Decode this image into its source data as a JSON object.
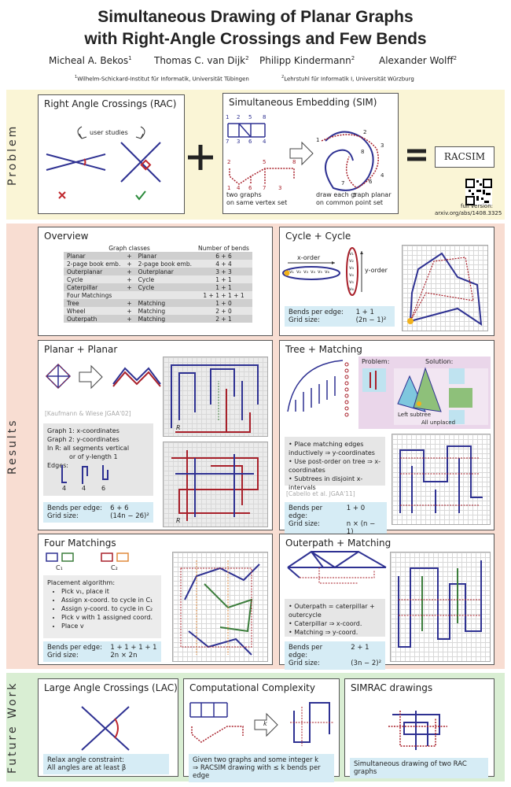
{
  "header": {
    "title": [
      "Simultaneous Drawing of Planar Graphs",
      "with Right-Angle Crossings and Few Bends"
    ],
    "authors": [
      {
        "name": "Micheal A. Bekos",
        "sup": "1"
      },
      {
        "name": "Thomas C. van Dijk",
        "sup": "2"
      },
      {
        "name": "Philipp Kindermann",
        "sup": "2"
      },
      {
        "name": "Alexander Wolff",
        "sup": "2"
      }
    ],
    "affiliations": [
      {
        "sup": "1",
        "text": "Wilhelm-Schickard-Institut für Informatik, Universität Tübingen"
      },
      {
        "sup": "2",
        "text": "Lehrstuhl für Informatik I, Universität Würzburg"
      }
    ]
  },
  "sections": [
    "Problem",
    "Results",
    "Future Work"
  ],
  "problem": {
    "rac": {
      "title": "Right Angle Crossings (RAC)",
      "note": "user studies"
    },
    "sim": {
      "title": "Simultaneous Embedding (SIM)",
      "graph1_labels": [
        "1",
        "2",
        "5",
        "8",
        "7",
        "3",
        "6",
        "4"
      ],
      "graph2_labels": [
        "2",
        "5",
        "8",
        "1",
        "4",
        "6",
        "7",
        "3"
      ],
      "drawing_labels": [
        "1",
        "2",
        "3",
        "4",
        "5",
        "6",
        "7",
        "8"
      ],
      "caption_left": [
        "two graphs",
        "on same vertex set"
      ],
      "caption_right": [
        "draw each graph planar",
        "on common point set"
      ]
    },
    "racsim": "RACSIM",
    "full_version": "full version:",
    "url": "arxiv.org/abs/1408.3325"
  },
  "overview": {
    "title": "Overview",
    "header": [
      "Graph classes",
      "Number of bends"
    ],
    "rows": [
      {
        "classes": [
          "Planar",
          "+",
          "Planar"
        ],
        "bends": "6 + 6"
      },
      {
        "classes": [
          "2-page book emb.",
          "+",
          "2-page book emb."
        ],
        "bends": "4 + 4"
      },
      {
        "classes": [
          "Outerplanar",
          "+",
          "Outerplanar"
        ],
        "bends": "3 + 3"
      },
      {
        "classes": [
          "Cycle",
          "+",
          "Cycle"
        ],
        "bends": "1 + 1"
      },
      {
        "classes": [
          "Caterpillar",
          "+",
          "Cycle"
        ],
        "bends": "1 + 1"
      },
      {
        "classes": [
          "Four Matchings"
        ],
        "bends": "1 + 1 + 1 + 1"
      },
      {
        "classes": [
          "Tree",
          "+",
          "Matching"
        ],
        "bends": "1 + 0"
      },
      {
        "classes": [
          "Wheel",
          "+",
          "Matching"
        ],
        "bends": "2 + 0"
      },
      {
        "classes": [
          "Outerpath",
          "+",
          "Matching"
        ],
        "bends": "2 + 1"
      }
    ]
  },
  "cycle_cycle": {
    "title": "Cycle + Cycle",
    "x_order": "x-order",
    "y_order": "y-order",
    "vertex_labels": [
      "v₁",
      "v₂",
      "v₃",
      "v₄",
      "v₅",
      "v₆"
    ],
    "bends_label": "Bends per edge:",
    "bends": "1 + 1",
    "grid_label": "Grid size:",
    "grid": "(2n − 1)²"
  },
  "planar_planar": {
    "title": "Planar + Planar",
    "citation": "[Kaufmann & Wiese JGAA'02]",
    "lines": [
      "Graph 1: x-coordinates",
      "Graph 2: y-coordinates",
      "In R: all segments vertical",
      "or of y-length 1"
    ],
    "edges_label": "Edges:",
    "edge_bends": [
      "4",
      "4",
      "6"
    ],
    "region": "R",
    "bends_label": "Bends per edge:",
    "bends": "6 + 6",
    "grid_label": "Grid size:",
    "grid": "(14n − 26)²"
  },
  "tree_matching": {
    "title": "Tree + Matching",
    "problem": "Problem:",
    "solution": "Solution:",
    "left_subtree": "Left subtree",
    "all_unplaced": "All unplaced",
    "bullets": [
      "Place matching edges inductively ⇒ y-coordinates",
      "Use post-order on tree ⇒ x-coordinates",
      "Subtrees in disjoint x-intervals"
    ],
    "citation": "[Cabello et al. JGAA'11]",
    "bends_label": "Bends per edge:",
    "bends": "1 + 0",
    "grid_label": "Grid size:",
    "grid": "n × (n − 1)"
  },
  "four_matchings": {
    "title": "Four Matchings",
    "cycles": [
      "C₁",
      "C₂"
    ],
    "algorithm_title": "Placement algorithm:",
    "steps": [
      "Pick v₁, place it",
      "Assign x-coord. to cycle in C₁",
      "Assign y-coord. to cycle in C₂",
      "Pick v with 1 assigned coord.",
      "Place v"
    ],
    "bends_label": "Bends per edge:",
    "bends": "1 + 1 + 1 + 1",
    "grid_label": "Grid size:",
    "grid": "2n × 2n"
  },
  "outerpath_matching": {
    "title": "Outerpath + Matching",
    "bullets": [
      "Outerpath = caterpillar + outercycle",
      "Caterpillar ⇒ x-coord.",
      "Matching ⇒ y-coord."
    ],
    "bends_label": "Bends per edge:",
    "bends": "2 + 1",
    "grid_label": "Grid size:",
    "grid": "(3n − 2)²"
  },
  "future": {
    "lac": {
      "title": "Large Angle Crossings (LAC)",
      "text": [
        "Relax angle constraint:",
        "All angles are at least β"
      ]
    },
    "complexity": {
      "title": "Computational Complexity",
      "k": "k",
      "text": [
        "Given two graphs and some integer k",
        "⇒ RACSIM drawing with ≤ k bends per edge"
      ]
    },
    "simrac": {
      "title": "SIMRAC drawings",
      "text": "Simultaneous drawing of two RAC graphs"
    }
  }
}
